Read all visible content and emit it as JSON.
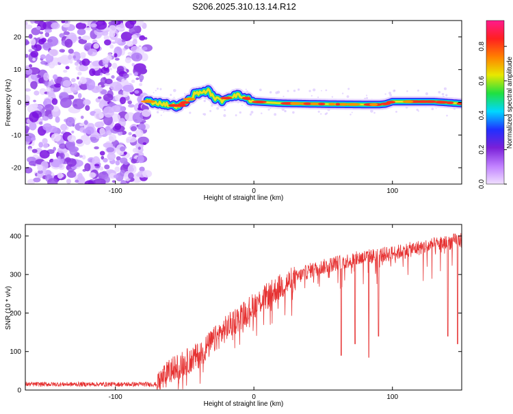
{
  "title": "S206.2025.310.13.14.R12",
  "chart_data": [
    {
      "type": "heatmap",
      "name": "spectrogram",
      "xlabel": "Height of straight line (km)",
      "ylabel": "Frequency (Hz)",
      "xlim": [
        -165,
        150
      ],
      "ylim": [
        -25,
        25
      ],
      "xticks": [
        -100,
        0,
        100
      ],
      "yticks": [
        -20,
        -10,
        0,
        10,
        20
      ],
      "noise_region_end_km": -77,
      "signal_start_km": -77,
      "ridge": [
        {
          "x": -77,
          "y": 0.3
        },
        {
          "x": -65,
          "y": -0.5
        },
        {
          "x": -55,
          "y": -1.2
        },
        {
          "x": -48,
          "y": 0.3
        },
        {
          "x": -43,
          "y": 2.5
        },
        {
          "x": -37,
          "y": 3.2
        },
        {
          "x": -33,
          "y": 3.5
        },
        {
          "x": -28,
          "y": 1.2
        },
        {
          "x": -23,
          "y": 0.5
        },
        {
          "x": -18,
          "y": 1.8
        },
        {
          "x": -12,
          "y": 2.2
        },
        {
          "x": -5,
          "y": 1.2
        },
        {
          "x": 0,
          "y": 0.2
        },
        {
          "x": 20,
          "y": -0.3
        },
        {
          "x": 60,
          "y": -0.6
        },
        {
          "x": 90,
          "y": -0.7
        },
        {
          "x": 95,
          "y": -0.5
        },
        {
          "x": 100,
          "y": 0.2
        },
        {
          "x": 130,
          "y": 0.2
        },
        {
          "x": 150,
          "y": -0.4
        }
      ]
    },
    {
      "type": "line",
      "name": "snr",
      "xlabel": "Height of straight line (km)",
      "ylabel": "SNR (10 * v/v)",
      "xlim": [
        -165,
        150
      ],
      "ylim": [
        0,
        430
      ],
      "xticks": [
        -100,
        0,
        100
      ],
      "yticks": [
        0,
        100,
        200,
        300,
        400
      ],
      "color": "#e63232",
      "trend": [
        {
          "x": -165,
          "y": 15
        },
        {
          "x": -70,
          "y": 15
        },
        {
          "x": -60,
          "y": 50
        },
        {
          "x": -40,
          "y": 90
        },
        {
          "x": -20,
          "y": 160
        },
        {
          "x": 0,
          "y": 220
        },
        {
          "x": 20,
          "y": 270
        },
        {
          "x": 40,
          "y": 310
        },
        {
          "x": 60,
          "y": 330
        },
        {
          "x": 80,
          "y": 345
        },
        {
          "x": 100,
          "y": 355
        },
        {
          "x": 120,
          "y": 370
        },
        {
          "x": 150,
          "y": 390
        }
      ],
      "dips": [
        {
          "x": 63,
          "y": 90
        },
        {
          "x": 73,
          "y": 120
        },
        {
          "x": 83,
          "y": 85
        },
        {
          "x": 90,
          "y": 140
        },
        {
          "x": 140,
          "y": 140
        },
        {
          "x": 147,
          "y": 120
        }
      ]
    },
    {
      "type": "colorbar",
      "name": "colorbar",
      "label": "Normalized spectral amplitude",
      "range": [
        0.0,
        0.95
      ],
      "ticks": [
        "0.0",
        "0.2",
        "0.4",
        "0.6",
        "0.8"
      ],
      "colors": [
        "#f0e0ff",
        "#c080ff",
        "#7a20d8",
        "#2030ff",
        "#00d8ff",
        "#20e040",
        "#e8e800",
        "#ff8000",
        "#ff2020",
        "#ff1a8c"
      ]
    }
  ]
}
